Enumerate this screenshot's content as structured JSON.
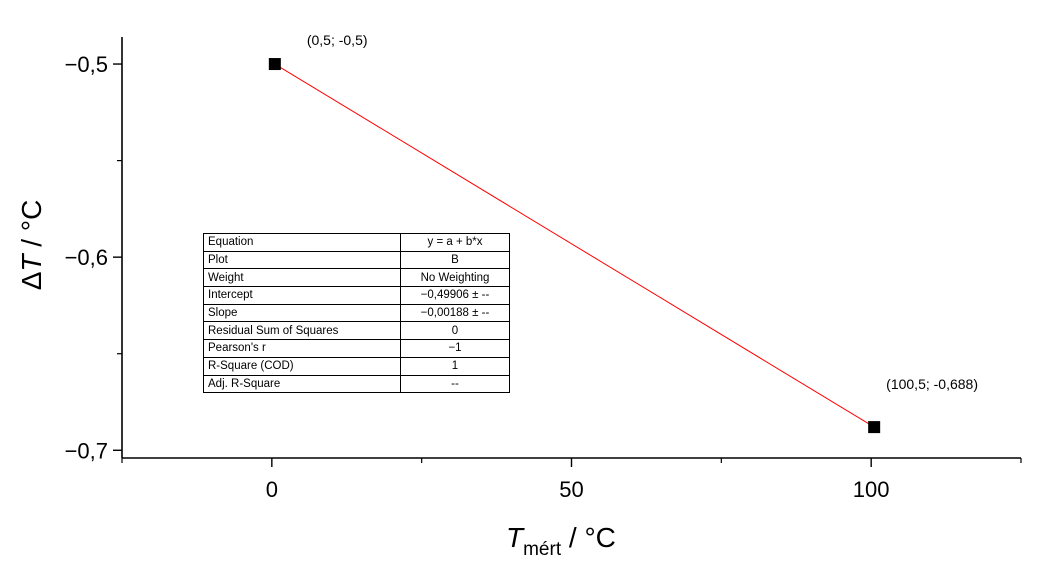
{
  "chart_data": {
    "type": "scatter",
    "x_label_main": "T",
    "x_label_sub": "mért",
    "x_label_unit": " / °C",
    "y_label_main": "T",
    "y_label_prefix": "Δ",
    "y_label_unit": " / °C",
    "xlim": [
      -25,
      125
    ],
    "ylim": [
      -0.704,
      -0.486
    ],
    "x_ticks": [
      0,
      50,
      100
    ],
    "x_tick_labels": [
      "0",
      "50",
      "100"
    ],
    "y_ticks": [
      -0.5,
      -0.6,
      -0.7
    ],
    "y_tick_labels": [
      "−0,5",
      "−0,6",
      "−0,7"
    ],
    "series": [
      {
        "x": [
          0.5,
          100.5
        ],
        "y": [
          -0.5,
          -0.688
        ],
        "point_labels": [
          "(0,5; -0,5)",
          "(100,5; -0,688)"
        ],
        "marker": "square",
        "color": "#000000"
      }
    ],
    "fit_line": {
      "x": [
        0.5,
        100.5
      ],
      "y": [
        -0.5,
        -0.688
      ],
      "color": "#ff0000"
    },
    "fit_table": [
      {
        "key": "Equation",
        "value": "y = a + b*x"
      },
      {
        "key": "Plot",
        "value": "B"
      },
      {
        "key": "Weight",
        "value": "No Weighting"
      },
      {
        "key": "Intercept",
        "value": "−0,49906 ± --"
      },
      {
        "key": "Slope",
        "value": "−0,00188 ± --"
      },
      {
        "key": "Residual Sum of Squares",
        "value": "0"
      },
      {
        "key": "Pearson's r",
        "value": "−1"
      },
      {
        "key": "R-Square (COD)",
        "value": "1"
      },
      {
        "key": "Adj. R-Square",
        "value": "--"
      }
    ]
  }
}
